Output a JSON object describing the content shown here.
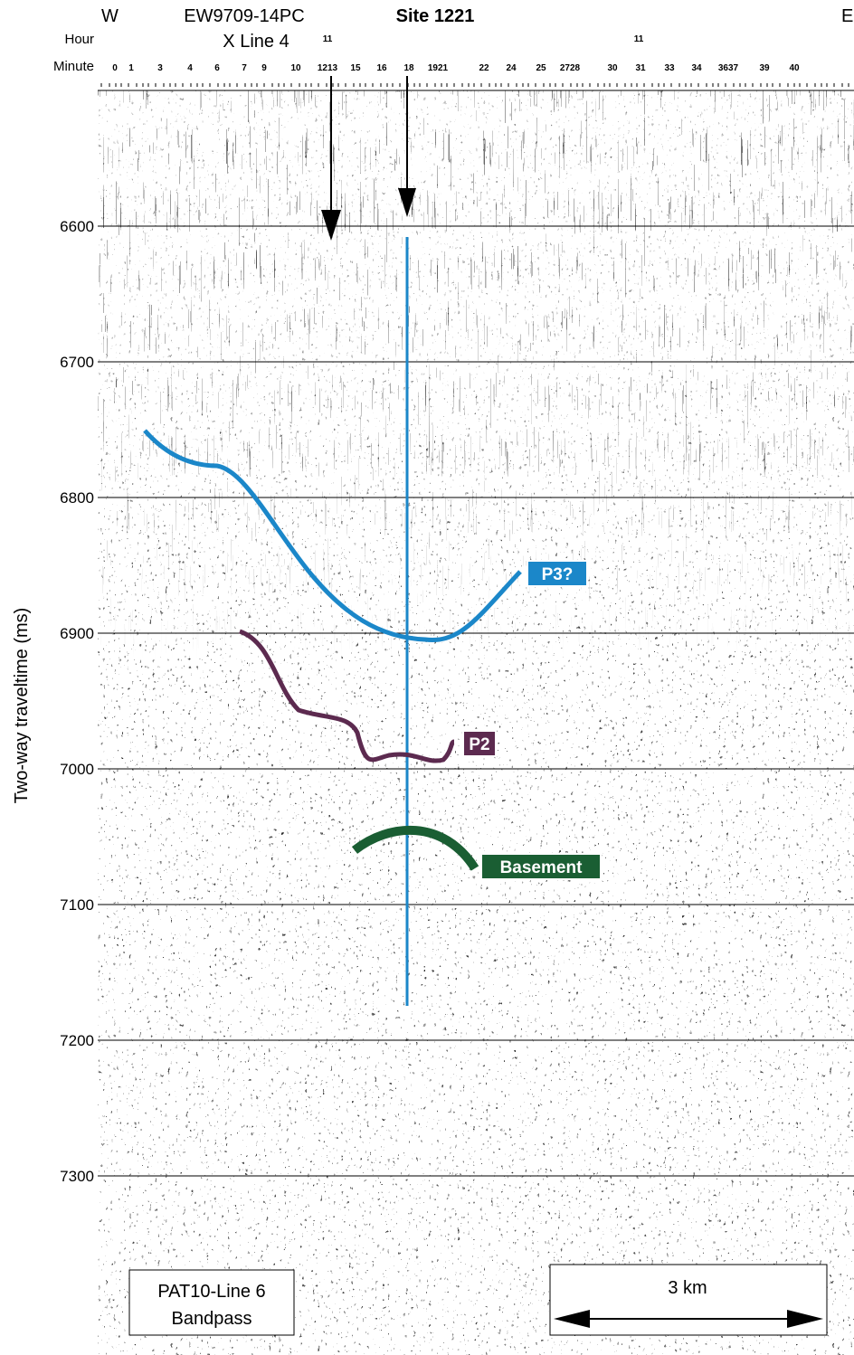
{
  "header": {
    "left": "W",
    "right": "E",
    "line_label": "EW9709-14PC",
    "line_label2": "X Line 4",
    "site": "Site 1221"
  },
  "navigation": {
    "hour_label": "Hour",
    "minute_label": "Minute",
    "hours": [
      "11",
      "11"
    ],
    "minutes": [
      "0",
      "1",
      "3",
      "4",
      "6",
      "7",
      "9",
      "10",
      "1213",
      "15",
      "16",
      "18",
      "1921",
      "22",
      "24",
      "25",
      "2728",
      "30",
      "31",
      "33",
      "34",
      "3637",
      "39",
      "40"
    ]
  },
  "axis": {
    "label": "Two-way traveltime (ms)",
    "ticks": [
      6600,
      6700,
      6800,
      6900,
      7000,
      7100,
      7200,
      7300
    ]
  },
  "horizons": [
    "P3?",
    "P2",
    "Basement"
  ],
  "annotations": {
    "box_line1": "PAT10-Line 6",
    "box_line2": "Bandpass",
    "scale": "3 km"
  }
}
